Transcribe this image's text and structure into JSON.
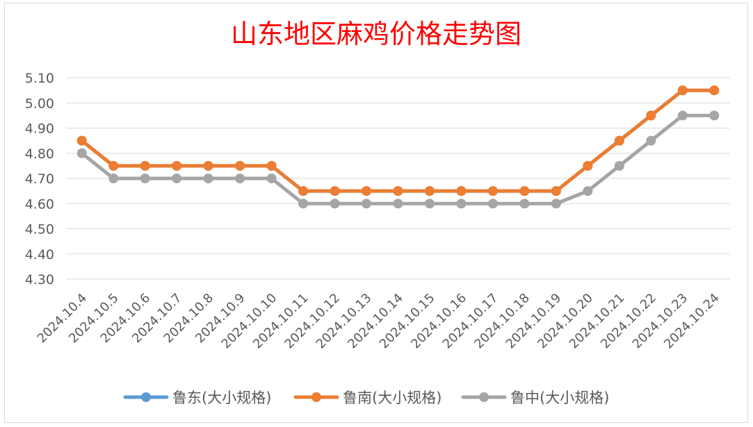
{
  "chart_data": {
    "type": "line",
    "title": "山东地区麻鸡价格走势图",
    "xlabel": "",
    "ylabel": "",
    "ylim": [
      4.3,
      5.1
    ],
    "yticks": [
      "5.10",
      "5.00",
      "4.90",
      "4.80",
      "4.70",
      "4.60",
      "4.50",
      "4.40",
      "4.30"
    ],
    "grid": true,
    "legend_position": "bottom",
    "categories": [
      "2024.10.4",
      "2024.10.5",
      "2024.10.6",
      "2024.10.7",
      "2024.10.8",
      "2024.10.9",
      "2024.10.10",
      "2024.10.11",
      "2024.10.12",
      "2024.10.13",
      "2024.10.14",
      "2024.10.15",
      "2024.10.16",
      "2024.10.17",
      "2024.10.18",
      "2024.10.19",
      "2024.10.20",
      "2024.10.21",
      "2024.10.22",
      "2024.10.23",
      "2024.10.24"
    ],
    "series": [
      {
        "name": "鲁东(大小规格)",
        "color": "#5b9bd5",
        "values": [
          4.85,
          4.75,
          4.75,
          4.75,
          4.75,
          4.75,
          4.75,
          4.65,
          4.65,
          4.65,
          4.65,
          4.65,
          4.65,
          4.65,
          4.65,
          4.65,
          4.75,
          4.85,
          4.95,
          5.05,
          5.05
        ]
      },
      {
        "name": "鲁南(大小规格)",
        "color": "#ed7d31",
        "values": [
          4.85,
          4.75,
          4.75,
          4.75,
          4.75,
          4.75,
          4.75,
          4.65,
          4.65,
          4.65,
          4.65,
          4.65,
          4.65,
          4.65,
          4.65,
          4.65,
          4.75,
          4.85,
          4.95,
          5.05,
          5.05
        ]
      },
      {
        "name": "鲁中(大小规格)",
        "color": "#a5a5a5",
        "values": [
          4.8,
          4.7,
          4.7,
          4.7,
          4.7,
          4.7,
          4.7,
          4.6,
          4.6,
          4.6,
          4.6,
          4.6,
          4.6,
          4.6,
          4.6,
          4.6,
          4.65,
          4.75,
          4.85,
          4.95,
          4.95
        ]
      }
    ]
  }
}
